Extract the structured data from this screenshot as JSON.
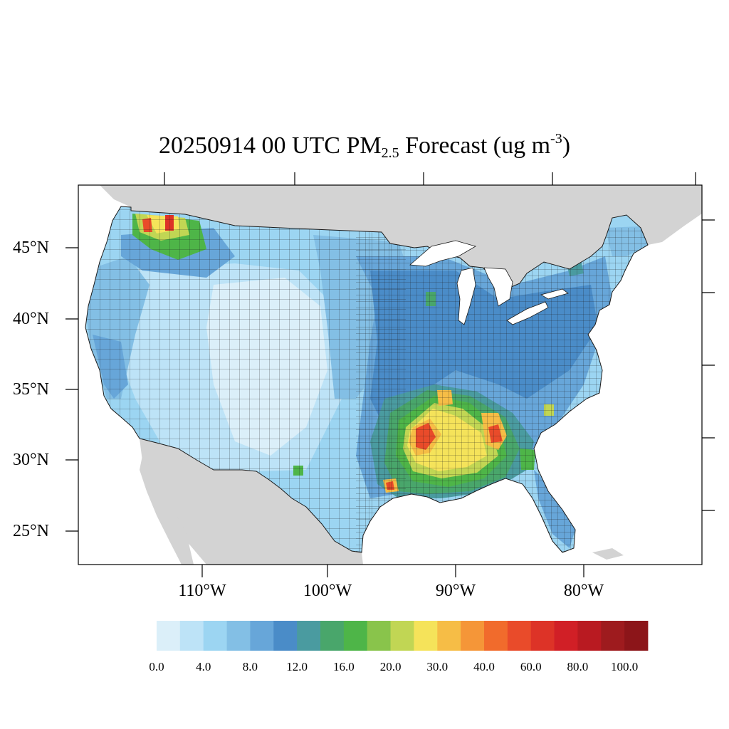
{
  "title": {
    "prefix": "20250914 00 UTC PM",
    "subscript": "2.5",
    "mid": " Forecast (ug m",
    "superscript": "-3",
    "suffix": ")"
  },
  "axes": {
    "lat_labels": [
      "45°N",
      "40°N",
      "35°N",
      "30°N",
      "25°N"
    ],
    "lon_labels": [
      "110°W",
      "100°W",
      "90°W",
      "80°W"
    ]
  },
  "colorbar": {
    "colors": [
      "#dbeff9",
      "#bde3f7",
      "#9cd5f2",
      "#83bfe5",
      "#67a6d9",
      "#4a8cc8",
      "#4a9ba0",
      "#49a66b",
      "#4eb548",
      "#89c44b",
      "#c1d654",
      "#f5e35a",
      "#f6bd46",
      "#f59638",
      "#f16b2c",
      "#e94b2a",
      "#dd3327",
      "#d11f26",
      "#b91a21",
      "#9e1b1e",
      "#8c1519"
    ],
    "labels": [
      "0.0",
      "4.0",
      "8.0",
      "12.0",
      "16.0",
      "20.0",
      "30.0",
      "40.0",
      "60.0",
      "80.0",
      "100.0"
    ]
  },
  "colors": {
    "land_outside": "#d3d3d3",
    "water": "#ffffff",
    "county_border": "#1a1a1a"
  }
}
